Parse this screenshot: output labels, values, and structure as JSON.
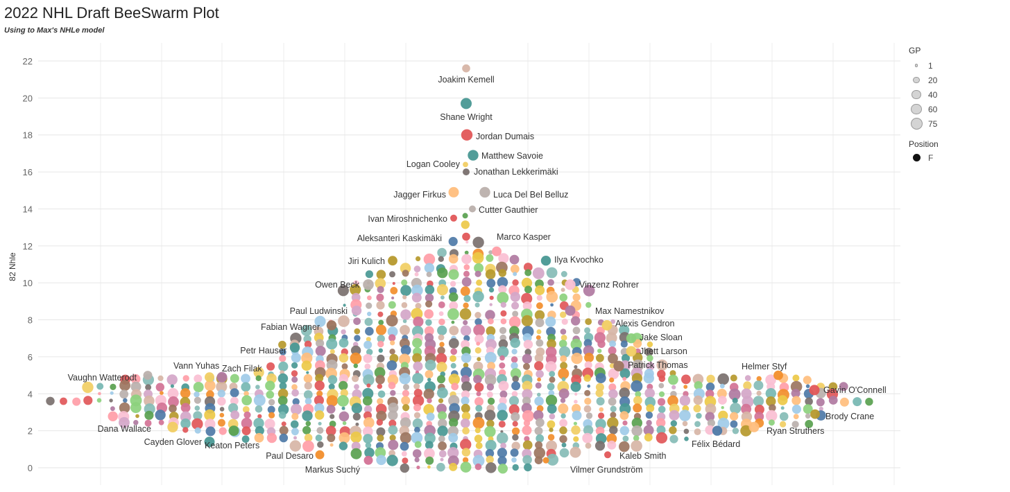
{
  "page": {
    "title": "2022 NHL Draft BeeSwarm Plot",
    "subtitle": "Using to Max's NHLe model"
  },
  "legend": {
    "gp_title": "GP",
    "gp_items": [
      {
        "label": "1",
        "gp": 1
      },
      {
        "label": "20",
        "gp": 20
      },
      {
        "label": "40",
        "gp": 40
      },
      {
        "label": "60",
        "gp": 60
      },
      {
        "label": "75",
        "gp": 75
      }
    ],
    "position_title": "Position",
    "position_items": [
      {
        "label": "F",
        "color": "#111111"
      }
    ]
  },
  "palette": [
    "#4e79a7",
    "#f28e2b",
    "#e15759",
    "#76b7b2",
    "#59a14f",
    "#edc948",
    "#b07aa1",
    "#ff9da7",
    "#9c755f",
    "#bab0ac",
    "#a0cbe8",
    "#ffbe7d",
    "#8cd17d",
    "#b6992d",
    "#499894",
    "#86bcb6",
    "#d37295",
    "#fabfd2",
    "#d4a6c8",
    "#79706e",
    "#f1ce63",
    "#d7b5a6"
  ],
  "chart_data": {
    "type": "scatter",
    "subtype": "beeswarm",
    "title": "2022 NHL Draft BeeSwarm Plot",
    "ylabel": "82 Nhle",
    "xlabel": "",
    "ylim": [
      -0.4,
      22.4
    ],
    "yticks": [
      0,
      2,
      4,
      6,
      8,
      10,
      12,
      14,
      16,
      18,
      20,
      22
    ],
    "grid": true,
    "size_encoding": "GP",
    "color_encoding": "Player",
    "labeled_players": [
      {
        "name": "Joakim Kemell",
        "y": 21.6,
        "gp": 30,
        "color": "#d7b5a6"
      },
      {
        "name": "Shane Wright",
        "y": 19.7,
        "gp": 65,
        "color": "#499894"
      },
      {
        "name": "Jordan Dumais",
        "y": 18.0,
        "gp": 68,
        "color": "#e15759"
      },
      {
        "name": "Matthew Savoie",
        "y": 16.9,
        "gp": 60,
        "color": "#499894"
      },
      {
        "name": "Logan Cooley",
        "y": 16.4,
        "gp": 10,
        "color": "#f1ce63"
      },
      {
        "name": "Jonathan Lekkerimäki",
        "y": 16.0,
        "gp": 20,
        "color": "#79706e"
      },
      {
        "name": "Jagger Firkus",
        "y": 14.9,
        "gp": 55,
        "color": "#ffbe7d"
      },
      {
        "name": "Luca Del Bel Belluz",
        "y": 14.9,
        "gp": 60,
        "color": "#bab0ac"
      },
      {
        "name": "Cutter Gauthier",
        "y": 14.0,
        "gp": 20,
        "color": "#bab0ac"
      },
      {
        "name": "Ivan Miroshnichenko",
        "y": 13.5,
        "gp": 20,
        "color": "#e15759"
      },
      {
        "name": "Aleksanteri Kaskimäki",
        "y": 12.5,
        "gp": 30,
        "color": "#e15759"
      },
      {
        "name": "Marco Kasper",
        "y": 11.7,
        "gp": 48,
        "color": "#ff9da7"
      },
      {
        "name": "Jiri Kulich",
        "y": 11.2,
        "gp": 45,
        "color": "#b6992d"
      },
      {
        "name": "Ilya Kvochko",
        "y": 11.2,
        "gp": 50,
        "color": "#499894"
      },
      {
        "name": "Owen Beck",
        "y": 9.9,
        "gp": 62,
        "color": "#bab0ac"
      },
      {
        "name": "Vinzenz Rohrer",
        "y": 9.9,
        "gp": 60,
        "color": "#fabfd2"
      },
      {
        "name": "Paul Ludwinski",
        "y": 8.5,
        "gp": 50,
        "color": "#d4a6c8"
      },
      {
        "name": "Max Namestnikov",
        "y": 8.5,
        "gp": 55,
        "color": "#b07aa1"
      },
      {
        "name": "Fabian Wagner",
        "y": 7.7,
        "gp": 50,
        "color": "#9c755f"
      },
      {
        "name": "Alexis Gendron",
        "y": 7.7,
        "gp": 55,
        "color": "#f1ce63"
      },
      {
        "name": "Jake Sloan",
        "y": 7.0,
        "gp": 50,
        "color": "#8cd17d"
      },
      {
        "name": "Petr Hauser",
        "y": 6.5,
        "gp": 50,
        "color": "#499894"
      },
      {
        "name": "Jhett Larson",
        "y": 6.3,
        "gp": 55,
        "color": "#f1ce63"
      },
      {
        "name": "Patrick Thomas",
        "y": 5.5,
        "gp": 60,
        "color": "#9c755f"
      },
      {
        "name": "Vann Yuhas",
        "y": 4.9,
        "gp": 48,
        "color": "#f1ce63"
      },
      {
        "name": "Zach Filak",
        "y": 4.9,
        "gp": 55,
        "color": "#b07aa1"
      },
      {
        "name": "Vaughn Watterodt",
        "y": 5.0,
        "gp": 40,
        "color": "#bab0ac"
      },
      {
        "name": "Helmer Styf",
        "y": 5.0,
        "gp": 45,
        "color": "#f28e2b"
      },
      {
        "name": "Gavin O'Connell",
        "y": 4.2,
        "gp": 55,
        "color": "#e15759"
      },
      {
        "name": "Brody Crane",
        "y": 2.9,
        "gp": 45,
        "color": "#b6992d"
      },
      {
        "name": "Dana Wallace",
        "y": 2.2,
        "gp": 60,
        "color": "#f1ce63"
      },
      {
        "name": "Ryan Struthers",
        "y": 2.2,
        "gp": 55,
        "color": "#ffbe7d"
      },
      {
        "name": "Cayden Glover",
        "y": 1.4,
        "gp": 55,
        "color": "#499894"
      },
      {
        "name": "Keaton Peters",
        "y": 2.0,
        "gp": 55,
        "color": "#59a14f"
      },
      {
        "name": "Félix Bédard",
        "y": 2.0,
        "gp": 50,
        "color": "#4e79a7"
      },
      {
        "name": "Paul Desaro",
        "y": 0.7,
        "gp": 40,
        "color": "#f28e2b"
      },
      {
        "name": "Kaleb Smith",
        "y": 0.7,
        "gp": 20,
        "color": "#e15759"
      },
      {
        "name": "Markus Suchý",
        "y": 0.4,
        "gp": 40,
        "color": "#d37295"
      },
      {
        "name": "Vilmer Grundström",
        "y": 0.4,
        "gp": 15,
        "color": "#f28e2b"
      }
    ]
  }
}
